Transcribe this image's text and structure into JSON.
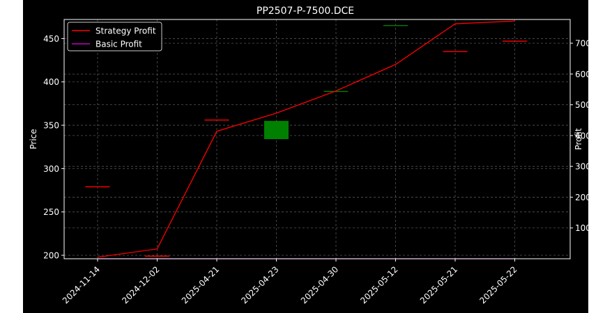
{
  "chart_data": {
    "type": "candlestick+line",
    "title": "PP2507-P-7500.DCE",
    "ylabel_left": "Price",
    "ylabel_right": "Profit",
    "categories": [
      "2024-11-14",
      "2024-12-02",
      "2025-04-21",
      "2025-04-23",
      "2025-04-30",
      "2025-05-12",
      "2025-05-21",
      "2025-05-22"
    ],
    "ylim_left": [
      196,
      472
    ],
    "ylim_right": [
      0,
      777
    ],
    "yticks_left": [
      200,
      250,
      300,
      350,
      400,
      450
    ],
    "yticks_right": [
      100,
      200,
      300,
      400,
      500,
      600,
      700
    ],
    "grid": true,
    "legend_position": "top-left",
    "candles": [
      {
        "open": 279,
        "close": 279,
        "high": 279,
        "low": 279,
        "color": "#ff0000"
      },
      {
        "open": 199,
        "close": 199,
        "high": 199,
        "low": 199,
        "color": "#ff0000"
      },
      {
        "open": 356,
        "close": 356,
        "high": 356,
        "low": 356,
        "color": "#ff0000"
      },
      {
        "open": 334,
        "close": 355,
        "high": 355,
        "low": 334,
        "color": "#008000"
      },
      {
        "open": 389,
        "close": 389,
        "high": 389,
        "low": 389,
        "color": "#008000"
      },
      {
        "open": 465,
        "close": 465,
        "high": 465,
        "low": 465,
        "color": "#008000"
      },
      {
        "open": 435,
        "close": 435,
        "high": 435,
        "low": 435,
        "color": "#ff0000"
      },
      {
        "open": 447,
        "close": 447,
        "high": 447,
        "low": 447,
        "color": "#ff0000"
      }
    ],
    "series": [
      {
        "name": "Strategy Profit",
        "color": "#ff0000",
        "values": [
          5,
          32,
          414,
          473,
          545,
          631,
          763,
          772
        ]
      },
      {
        "name": "Basic Profit",
        "color": "#bf00bf",
        "values": [
          0,
          0,
          0,
          0,
          0,
          0,
          0,
          0
        ]
      }
    ]
  }
}
